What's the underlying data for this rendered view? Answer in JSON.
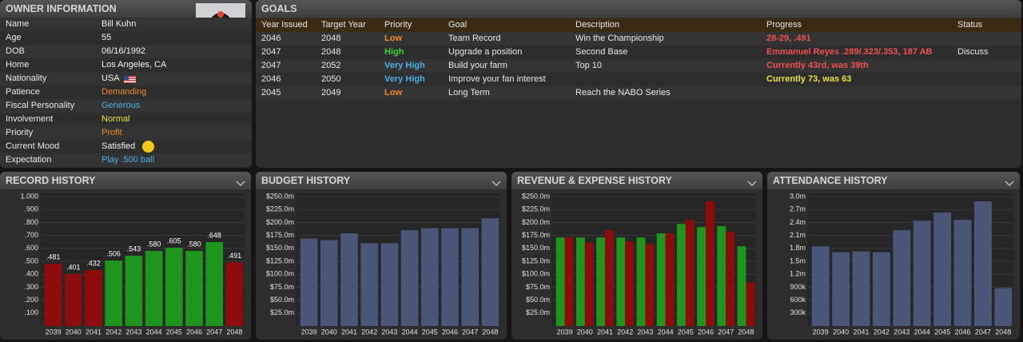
{
  "owner_information": {
    "title": "OWNER INFORMATION",
    "rows": [
      [
        "Name",
        "Bill Kuhn"
      ],
      [
        "Age",
        "55"
      ],
      [
        "DOB",
        "06/16/1992"
      ],
      [
        "Home",
        "Los Angeles, CA"
      ],
      [
        "Nationality",
        "USA"
      ],
      [
        "Patience",
        "Demanding"
      ],
      [
        "Fiscal Personality",
        "Generous"
      ],
      [
        "Involvement",
        "Normal"
      ],
      [
        "Priority",
        "Profit"
      ],
      [
        "Current Mood",
        "Satisfied"
      ],
      [
        "Expectation",
        "Play .500 ball"
      ]
    ]
  },
  "goals": {
    "title": "GOALS",
    "columns": [
      "Year Issued",
      "Target Year",
      "Priority",
      "Goal",
      "Description",
      "Progress",
      "Status"
    ],
    "rows": [
      [
        "2046",
        "2048",
        "Low",
        "Team Record",
        "Win the Championship",
        "28-29, .491",
        ""
      ],
      [
        "2047",
        "2048",
        "High",
        "Upgrade a position",
        "Second Base",
        "Emmanuel Reyes .289/.323/.353, 187 AB",
        "Discuss"
      ],
      [
        "2047",
        "2052",
        "Very High",
        "Build your farm",
        "Top 10",
        "Currently 43rd, was 39th",
        ""
      ],
      [
        "2046",
        "2050",
        "Very High",
        "Improve your fan interest",
        "",
        "Currently 73, was 63",
        ""
      ],
      [
        "2045",
        "2049",
        "Low",
        "Long Term",
        "Reach the NABO Series",
        "",
        ""
      ]
    ]
  },
  "chart_data": [
    {
      "type": "bar",
      "title": "RECORD HISTORY",
      "categories": [
        "2039",
        "2040",
        "2041",
        "2042",
        "2043",
        "2044",
        "2045",
        "2046",
        "2047",
        "2048"
      ],
      "values": [
        0.481,
        0.401,
        0.432,
        0.506,
        0.543,
        0.58,
        0.605,
        0.58,
        0.648,
        0.491
      ],
      "value_labels": [
        ".481",
        ".401",
        ".432",
        ".506",
        ".543",
        ".580",
        ".605",
        ".580",
        ".648",
        ".491"
      ],
      "colors": [
        "#8e0b0b",
        "#8e0b0b",
        "#8e0b0b",
        "#1e961e",
        "#1e961e",
        "#1e961e",
        "#1e961e",
        "#1e961e",
        "#1e961e",
        "#8e0b0b"
      ],
      "ylim": [
        0,
        1
      ],
      "yticks": [
        {
          "value": 0.1,
          "label": ".100"
        },
        {
          "value": 0.2,
          "label": ".200"
        },
        {
          "value": 0.3,
          "label": ".300"
        },
        {
          "value": 0.4,
          "label": ".400"
        },
        {
          "value": 0.5,
          "label": ".500"
        },
        {
          "value": 0.6,
          "label": ".600"
        },
        {
          "value": 0.7,
          "label": ".700"
        },
        {
          "value": 0.8,
          "label": ".800"
        },
        {
          "value": 0.9,
          "label": ".900"
        },
        {
          "value": 1,
          "label": "1.000"
        }
      ],
      "grid": true
    },
    {
      "type": "bar",
      "title": "BUDGET HISTORY",
      "categories": [
        "2039",
        "2040",
        "2041",
        "2042",
        "2043",
        "2044",
        "2045",
        "2046",
        "2047",
        "2048"
      ],
      "values": [
        169,
        166,
        179,
        160,
        160,
        185,
        189,
        189,
        189,
        208
      ],
      "color": "#4a5578",
      "ylim": [
        0,
        250
      ],
      "yticks": [
        {
          "value": 25,
          "label": "$25.0m"
        },
        {
          "value": 50,
          "label": "$50.0m"
        },
        {
          "value": 75,
          "label": "$75.0m"
        },
        {
          "value": 100,
          "label": "$100.0m"
        },
        {
          "value": 125,
          "label": "$125.0m"
        },
        {
          "value": 150,
          "label": "$150.0m"
        },
        {
          "value": 175,
          "label": "$175.0m"
        },
        {
          "value": 200,
          "label": "$200.0m"
        },
        {
          "value": 225,
          "label": "$225.0m"
        },
        {
          "value": 250,
          "label": "$250.0m"
        }
      ],
      "grid": true
    },
    {
      "type": "bar",
      "title": "REVENUE & EXPENSE HISTORY",
      "categories": [
        "2039",
        "2040",
        "2041",
        "2042",
        "2043",
        "2044",
        "2045",
        "2046",
        "2047",
        "2048"
      ],
      "series": [
        {
          "color": "#1e961e",
          "values": [
            171,
            171,
            171,
            171,
            171,
            179,
            197,
            191,
            193,
            154
          ]
        },
        {
          "color": "#8e0b0b",
          "values": [
            171,
            161,
            185,
            163,
            158,
            179,
            205,
            241,
            182,
            84
          ]
        }
      ],
      "ylim": [
        0,
        250
      ],
      "yticks": [
        {
          "value": 25,
          "label": "$25.0m"
        },
        {
          "value": 50,
          "label": "$50.0m"
        },
        {
          "value": 75,
          "label": "$75.0m"
        },
        {
          "value": 100,
          "label": "$100.0m"
        },
        {
          "value": 125,
          "label": "$125.0m"
        },
        {
          "value": 150,
          "label": "$150.0m"
        },
        {
          "value": 175,
          "label": "$175.0m"
        },
        {
          "value": 200,
          "label": "$200.0m"
        },
        {
          "value": 225,
          "label": "$225.0m"
        },
        {
          "value": 250,
          "label": "$250.0m"
        }
      ],
      "grid": true
    },
    {
      "type": "bar",
      "title": "ATTENDANCE HISTORY",
      "categories": [
        "2039",
        "2040",
        "2041",
        "2042",
        "2043",
        "2044",
        "2045",
        "2046",
        "2047",
        "2048"
      ],
      "values": [
        1845000,
        1710000,
        1730000,
        1710000,
        2220000,
        2440000,
        2630000,
        2460000,
        2890000,
        880000
      ],
      "color": "#4a5578",
      "ylim": [
        0,
        3000000
      ],
      "yticks": [
        {
          "value": 300000,
          "label": "300k"
        },
        {
          "value": 600000,
          "label": "600k"
        },
        {
          "value": 900000,
          "label": "900k"
        },
        {
          "value": 1200000,
          "label": "1.2m"
        },
        {
          "value": 1500000,
          "label": "1.5m"
        },
        {
          "value": 1800000,
          "label": "1.8m"
        },
        {
          "value": 2100000,
          "label": "2.1m"
        },
        {
          "value": 2400000,
          "label": "2.4m"
        },
        {
          "value": 2700000,
          "label": "2.7m"
        },
        {
          "value": 3000000,
          "label": "3.0m"
        }
      ],
      "grid": true
    }
  ]
}
